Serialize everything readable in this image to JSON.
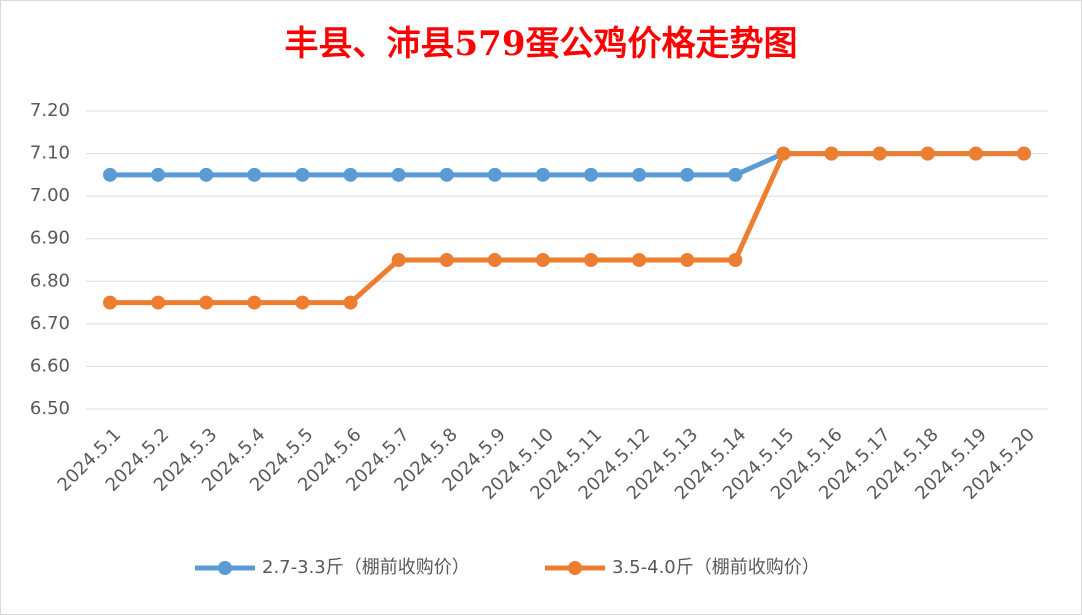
{
  "chart_data": {
    "type": "line",
    "title": "丰县、沛县579蛋公鸡价格走势图",
    "categories": [
      "2024.5.1",
      "2024.5.2",
      "2024.5.3",
      "2024.5.4",
      "2024.5.5",
      "2024.5.6",
      "2024.5.7",
      "2024.5.8",
      "2024.5.9",
      "2024.5.10",
      "2024.5.11",
      "2024.5.12",
      "2024.5.13",
      "2024.5.14",
      "2024.5.15",
      "2024.5.16",
      "2024.5.17",
      "2024.5.18",
      "2024.5.19",
      "2024.5.20"
    ],
    "series": [
      {
        "name": "2.7-3.3斤（棚前收购价）",
        "color": "#5b9bd5",
        "values": [
          7.05,
          7.05,
          7.05,
          7.05,
          7.05,
          7.05,
          7.05,
          7.05,
          7.05,
          7.05,
          7.05,
          7.05,
          7.05,
          7.05,
          7.1,
          7.1,
          7.1,
          7.1,
          7.1,
          7.1
        ]
      },
      {
        "name": "3.5-4.0斤（棚前收购价）",
        "color": "#ed7d31",
        "values": [
          6.75,
          6.75,
          6.75,
          6.75,
          6.75,
          6.75,
          6.85,
          6.85,
          6.85,
          6.85,
          6.85,
          6.85,
          6.85,
          6.85,
          7.1,
          7.1,
          7.1,
          7.1,
          7.1,
          7.1
        ]
      }
    ],
    "ylim": [
      6.5,
      7.2
    ],
    "yticks": [
      {
        "value": 6.5,
        "label": "6.50"
      },
      {
        "value": 6.6,
        "label": "6.60"
      },
      {
        "value": 6.7,
        "label": "6.70"
      },
      {
        "value": 6.8,
        "label": "6.80"
      },
      {
        "value": 6.9,
        "label": "6.90"
      },
      {
        "value": 7.0,
        "label": "7.00"
      },
      {
        "value": 7.1,
        "label": "7.10"
      },
      {
        "value": 7.2,
        "label": "7.20"
      }
    ],
    "grid": true,
    "legend": "bottom"
  }
}
